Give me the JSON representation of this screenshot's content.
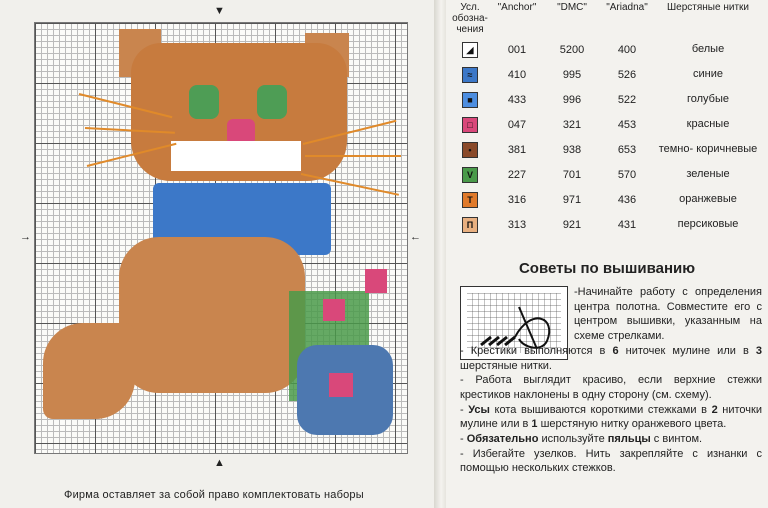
{
  "chart": {
    "arrows": {
      "top": "▼",
      "bottom": "▲",
      "left": "→",
      "right": "←"
    }
  },
  "footer_note": "Фирма оставляет за собой право комплектовать наборы",
  "key_table": {
    "headers": {
      "symbol": "Усл. обозна- чения",
      "anchor": "\"Anchor\"",
      "dmc": "\"DMC\"",
      "ariadna": "\"Ariadna\"",
      "name": "Шерстяные нитки"
    },
    "rows": [
      {
        "anchor": "001",
        "dmc": "5200",
        "ariadna": "400",
        "name": "белые",
        "color": "#ffffff",
        "glyph": "◢",
        "icon": "white-thread-symbol-icon"
      },
      {
        "anchor": "410",
        "dmc": "995",
        "ariadna": "526",
        "name": "синие",
        "color": "#3c78c8",
        "glyph": "≈",
        "icon": "blue-thread-symbol-icon"
      },
      {
        "anchor": "433",
        "dmc": "996",
        "ariadna": "522",
        "name": "голубые",
        "color": "#4d8ee0",
        "glyph": "■",
        "icon": "light-blue-thread-symbol-icon"
      },
      {
        "anchor": "047",
        "dmc": "321",
        "ariadna": "453",
        "name": "красные",
        "color": "#d9487a",
        "glyph": "□",
        "icon": "red-thread-symbol-icon"
      },
      {
        "anchor": "381",
        "dmc": "938",
        "ariadna": "653",
        "name": "темно- коричневые",
        "color": "#8a4a2a",
        "glyph": "•",
        "icon": "dark-brown-thread-symbol-icon"
      },
      {
        "anchor": "227",
        "dmc": "701",
        "ariadna": "570",
        "name": "зеленые",
        "color": "#4a9a4a",
        "glyph": "V",
        "icon": "green-thread-symbol-icon"
      },
      {
        "anchor": "316",
        "dmc": "971",
        "ariadna": "436",
        "name": "оранжевые",
        "color": "#e07a2a",
        "glyph": "T",
        "icon": "orange-thread-symbol-icon"
      },
      {
        "anchor": "313",
        "dmc": "921",
        "ariadna": "431",
        "name": "персиковые",
        "color": "#e8b080",
        "glyph": "П",
        "icon": "peach-thread-symbol-icon"
      }
    ]
  },
  "tips": {
    "title": "Советы по вышиванию",
    "items": [
      {
        "plain1": "-Начинайте работу с определения центра полотна. Совместите его с центром вышивки, указанным на схеме стрелками."
      },
      {
        "a": "- Крестики выполняются в ",
        "b": "6",
        "c": " ниточек мулине или в ",
        "d": "3",
        "e": " шерстяные нитки."
      },
      {
        "plain1": "- Работа выглядит красиво, если верхние стежки крестиков наклонены в одну сторону (см. схему)."
      },
      {
        "a": "- ",
        "b": "Усы",
        "c": " кота вышиваются короткими стежками в ",
        "d": "2",
        "e": " ниточки мулине или в ",
        "f": "1",
        "g": " шерстяную нитку оранжевого цвета."
      },
      {
        "a": "- ",
        "b": "Обязательно",
        "c": " используйте ",
        "d": "пяльцы",
        "e": " с винтом."
      },
      {
        "plain1": "- Избегайте узелков. Нить закрепляйте с изнанки с помощью нескольких стежков."
      }
    ]
  }
}
